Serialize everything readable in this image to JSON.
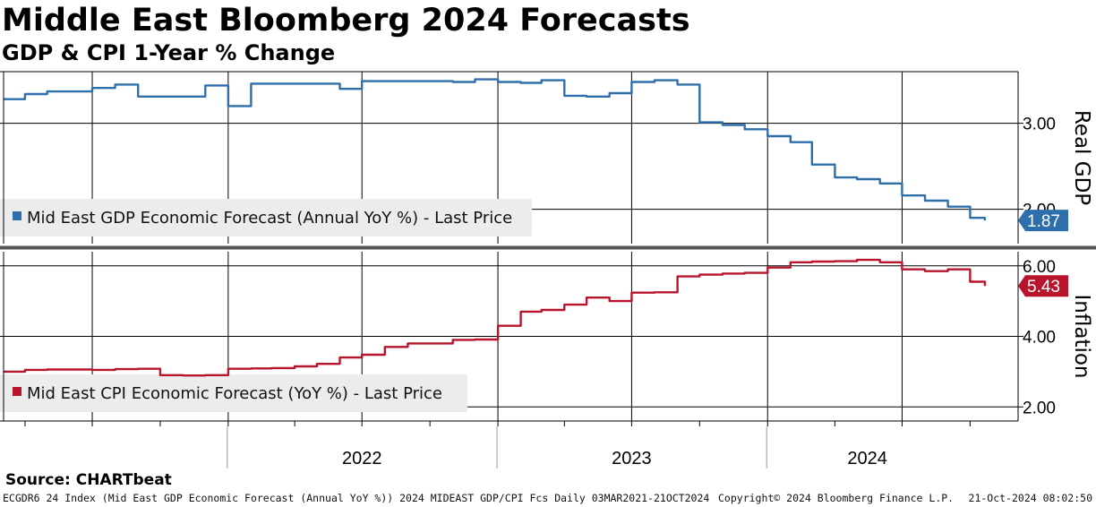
{
  "header": {
    "title": "Middle East Bloomberg 2024 Forecasts",
    "subtitle": "GDP & CPI 1-Year % Change"
  },
  "footer": {
    "source": "Source: CHARTbeat",
    "description": "ECGDR6 24 Index (Mid East GDP Economic Forecast (Annual YoY %)) 2024 MIDEAST GDP/CPI Fcs  Daily 03MAR2021-21OCT2024",
    "copyright": "Copyright© 2024 Bloomberg Finance L.P.",
    "timestamp": "21-Oct-2024 08:02:50"
  },
  "colors": {
    "gdp": "#2e6fab",
    "cpi": "#b8142c",
    "grid": "#000000",
    "legend_bg": "#ececec",
    "divider": "#555555"
  },
  "chart_data": [
    {
      "type": "line",
      "panel": "top",
      "axis_title": "Real GDP",
      "legend_position": "bottom-left",
      "ylim": [
        1.6,
        3.6
      ],
      "y_ticks": [
        "3.00",
        "2.00"
      ],
      "y_tick_values": [
        3.0,
        2.0
      ],
      "grid": true,
      "last_value_label": "1.87",
      "series": [
        {
          "name": "Mid East GDP Economic Forecast (Annual YoY %) - Last Price",
          "x": [
            "2021-03-03",
            "2021-04-01",
            "2021-05-01",
            "2021-06-01",
            "2021-07-01",
            "2021-08-01",
            "2021-09-01",
            "2021-10-01",
            "2021-11-01",
            "2021-12-01",
            "2022-01-01",
            "2022-02-01",
            "2022-03-01",
            "2022-04-01",
            "2022-05-01",
            "2022-06-01",
            "2022-07-01",
            "2022-08-01",
            "2022-09-01",
            "2022-10-01",
            "2022-11-01",
            "2022-12-01",
            "2023-01-01",
            "2023-02-01",
            "2023-03-01",
            "2023-04-01",
            "2023-05-01",
            "2023-06-01",
            "2023-07-01",
            "2023-08-01",
            "2023-09-01",
            "2023-10-01",
            "2023-11-01",
            "2023-12-01",
            "2024-01-01",
            "2024-02-01",
            "2024-03-01",
            "2024-04-01",
            "2024-05-01",
            "2024-06-01",
            "2024-07-01",
            "2024-08-01",
            "2024-09-01",
            "2024-10-01",
            "2024-10-21"
          ],
          "values": [
            3.28,
            3.34,
            3.37,
            3.37,
            3.41,
            3.45,
            3.31,
            3.31,
            3.31,
            3.44,
            3.2,
            3.46,
            3.46,
            3.46,
            3.46,
            3.4,
            3.49,
            3.49,
            3.49,
            3.49,
            3.48,
            3.51,
            3.48,
            3.47,
            3.5,
            3.32,
            3.31,
            3.35,
            3.48,
            3.5,
            3.45,
            3.01,
            2.98,
            2.93,
            2.85,
            2.78,
            2.52,
            2.37,
            2.35,
            2.3,
            2.16,
            2.1,
            2.03,
            1.9,
            1.87
          ]
        }
      ]
    },
    {
      "type": "line",
      "panel": "bottom",
      "axis_title": "Inflation",
      "legend_position": "bottom-left",
      "ylim": [
        1.6,
        6.4
      ],
      "y_ticks": [
        "6.00",
        "4.00",
        "2.00"
      ],
      "y_tick_values": [
        6.0,
        4.0,
        2.0
      ],
      "grid": true,
      "x_ticks": [
        "2022",
        "2023",
        "2024"
      ],
      "last_value_label": "5.43",
      "series": [
        {
          "name": "Mid East CPI Economic Forecast (YoY %) - Last Price",
          "x": [
            "2021-03-03",
            "2021-04-01",
            "2021-05-01",
            "2021-06-01",
            "2021-07-01",
            "2021-08-01",
            "2021-09-01",
            "2021-10-01",
            "2021-11-01",
            "2021-12-01",
            "2022-01-01",
            "2022-02-01",
            "2022-03-01",
            "2022-04-01",
            "2022-05-01",
            "2022-06-01",
            "2022-07-01",
            "2022-08-01",
            "2022-09-01",
            "2022-10-01",
            "2022-11-01",
            "2022-12-01",
            "2023-01-01",
            "2023-02-01",
            "2023-03-01",
            "2023-04-01",
            "2023-05-01",
            "2023-06-01",
            "2023-07-01",
            "2023-08-01",
            "2023-09-01",
            "2023-10-01",
            "2023-11-01",
            "2023-12-01",
            "2024-01-01",
            "2024-02-01",
            "2024-03-01",
            "2024-04-01",
            "2024-05-01",
            "2024-06-01",
            "2024-07-01",
            "2024-08-01",
            "2024-09-01",
            "2024-10-01",
            "2024-10-21"
          ],
          "values": [
            3.0,
            3.05,
            3.06,
            3.06,
            3.05,
            3.07,
            3.08,
            2.9,
            2.89,
            2.9,
            3.08,
            3.09,
            3.1,
            3.15,
            3.22,
            3.4,
            3.48,
            3.7,
            3.8,
            3.8,
            3.9,
            3.91,
            4.3,
            4.7,
            4.75,
            4.9,
            5.1,
            5.0,
            5.24,
            5.25,
            5.7,
            5.75,
            5.78,
            5.8,
            5.95,
            6.1,
            6.12,
            6.13,
            6.17,
            6.1,
            5.9,
            5.85,
            5.9,
            5.55,
            5.43
          ]
        }
      ]
    }
  ]
}
